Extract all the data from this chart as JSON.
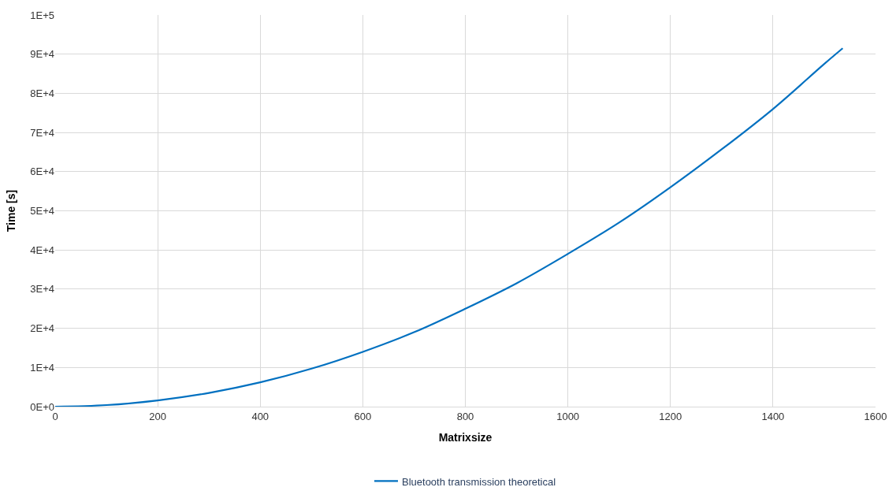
{
  "chart_data": {
    "type": "line",
    "xlabel": "Matrixsize",
    "ylabel": "Time [s]",
    "x": [
      0,
      100,
      200,
      300,
      400,
      500,
      600,
      700,
      800,
      900,
      1000,
      1100,
      1200,
      1300,
      1400,
      1500,
      1536
    ],
    "series": [
      {
        "name": "Bluetooth transmission theoretical",
        "color": "#0070c0",
        "values": [
          0,
          400,
          1600,
          3500,
          6200,
          9700,
          14000,
          19000,
          25000,
          31500,
          39000,
          47000,
          56000,
          65700,
          76000,
          87500,
          91500
        ]
      }
    ],
    "xlim": [
      0,
      1600
    ],
    "xticks": [
      0,
      200,
      400,
      600,
      800,
      1000,
      1200,
      1400,
      1600
    ],
    "ylim": [
      0,
      100000
    ],
    "yticks": [
      {
        "value": 0,
        "label": "0E+0"
      },
      {
        "value": 10000,
        "label": "1E+4"
      },
      {
        "value": 20000,
        "label": "2E+4"
      },
      {
        "value": 30000,
        "label": "3E+4"
      },
      {
        "value": 40000,
        "label": "4E+4"
      },
      {
        "value": 50000,
        "label": "5E+4"
      },
      {
        "value": 60000,
        "label": "6E+4"
      },
      {
        "value": 70000,
        "label": "7E+4"
      },
      {
        "value": 80000,
        "label": "8E+4"
      },
      {
        "value": 90000,
        "label": "9E+4"
      },
      {
        "value": 100000,
        "label": "1E+5"
      }
    ],
    "grid": true,
    "legend": "bottom",
    "marker": "none",
    "line_style": "solid"
  }
}
